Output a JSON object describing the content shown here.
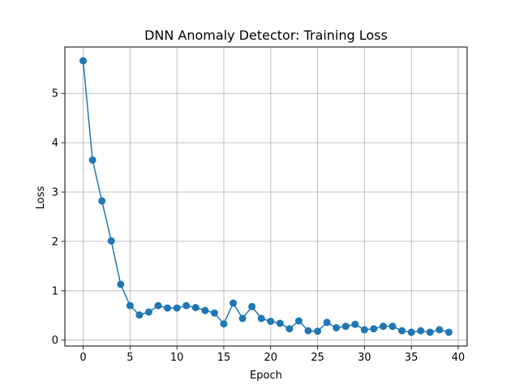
{
  "chart_data": {
    "type": "line",
    "title": "DNN Anomaly Detector: Training Loss",
    "xlabel": "Epoch",
    "ylabel": "Loss",
    "xlim": [
      -1.95,
      40.95
    ],
    "ylim": [
      -0.12,
      5.94
    ],
    "xticks": [
      0,
      5,
      10,
      15,
      20,
      25,
      30,
      35,
      40
    ],
    "yticks": [
      0,
      1,
      2,
      3,
      4,
      5
    ],
    "grid": true,
    "legend": false,
    "marker": "circle",
    "line_color": "#1f77b4",
    "series": [
      {
        "x": [
          0,
          1,
          2,
          3,
          4,
          5,
          6,
          7,
          8,
          9,
          10,
          11,
          12,
          13,
          14,
          15,
          16,
          17,
          18,
          19,
          20,
          21,
          22,
          23,
          24,
          25,
          26,
          27,
          28,
          29,
          30,
          31,
          32,
          33,
          34,
          35,
          36,
          37,
          38,
          39
        ],
        "values": [
          5.66,
          3.65,
          2.82,
          2.01,
          1.13,
          0.7,
          0.51,
          0.57,
          0.7,
          0.65,
          0.65,
          0.7,
          0.66,
          0.6,
          0.55,
          0.33,
          0.75,
          0.44,
          0.68,
          0.44,
          0.38,
          0.34,
          0.23,
          0.39,
          0.19,
          0.18,
          0.36,
          0.25,
          0.28,
          0.32,
          0.21,
          0.23,
          0.28,
          0.28,
          0.19,
          0.16,
          0.19,
          0.16,
          0.21,
          0.16
        ]
      }
    ]
  }
}
